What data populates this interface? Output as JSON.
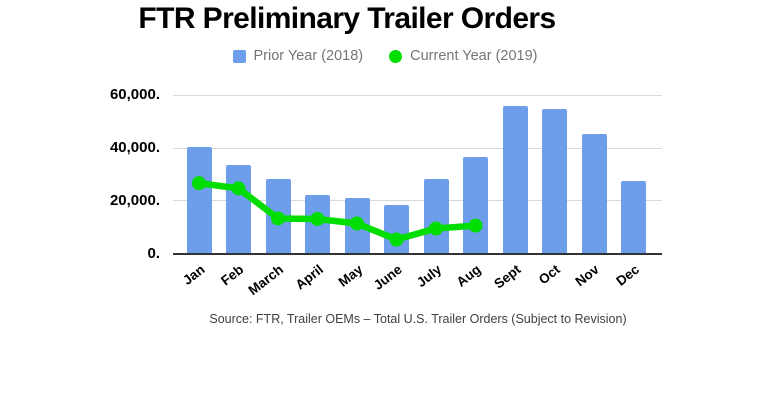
{
  "title": "FTR Preliminary Trailer Orders",
  "source_note": "Source: FTR, Trailer OEMs – Total U.S. Trailer Orders (Subject to Revision)",
  "legend": {
    "position": "top",
    "items": [
      {
        "label": "Prior Year (2018)",
        "color": "#6d9eeb",
        "shape": "square"
      },
      {
        "label": "Current Year (2019)",
        "color": "#00dd00",
        "shape": "circle"
      }
    ]
  },
  "colors": {
    "bar": "#6d9eeb",
    "line": "#00dd00",
    "gridline": "#d9d9d9",
    "axis": "#333333",
    "legend_text": "#757575"
  },
  "chart_data": {
    "type": "bar",
    "subtype": "bar-with-line-overlay",
    "title": "FTR Preliminary Trailer Orders",
    "xlabel": "",
    "ylabel": "",
    "categories": [
      "Jan",
      "Feb",
      "March",
      "April",
      "May",
      "June",
      "July",
      "Aug",
      "Sept",
      "Oct",
      "Nov",
      "Dec"
    ],
    "series": [
      {
        "name": "Prior Year (2018)",
        "type": "bar",
        "color": "#6d9eeb",
        "values": [
          40500,
          33700,
          28200,
          22200,
          21200,
          18500,
          28200,
          36500,
          56000,
          55000,
          45500,
          27700
        ]
      },
      {
        "name": "Current Year (2019)",
        "type": "line",
        "color": "#00dd00",
        "values": [
          26700,
          24700,
          13300,
          13100,
          11400,
          5300,
          9500,
          10600,
          null,
          null,
          null,
          null
        ]
      }
    ],
    "ylim": [
      0,
      60000
    ],
    "yticks": [
      0,
      20000,
      40000,
      60000
    ],
    "ytick_labels": [
      "0.",
      "20,000.",
      "40,000.",
      "60,000."
    ],
    "grid": true,
    "legend_position": "top"
  }
}
